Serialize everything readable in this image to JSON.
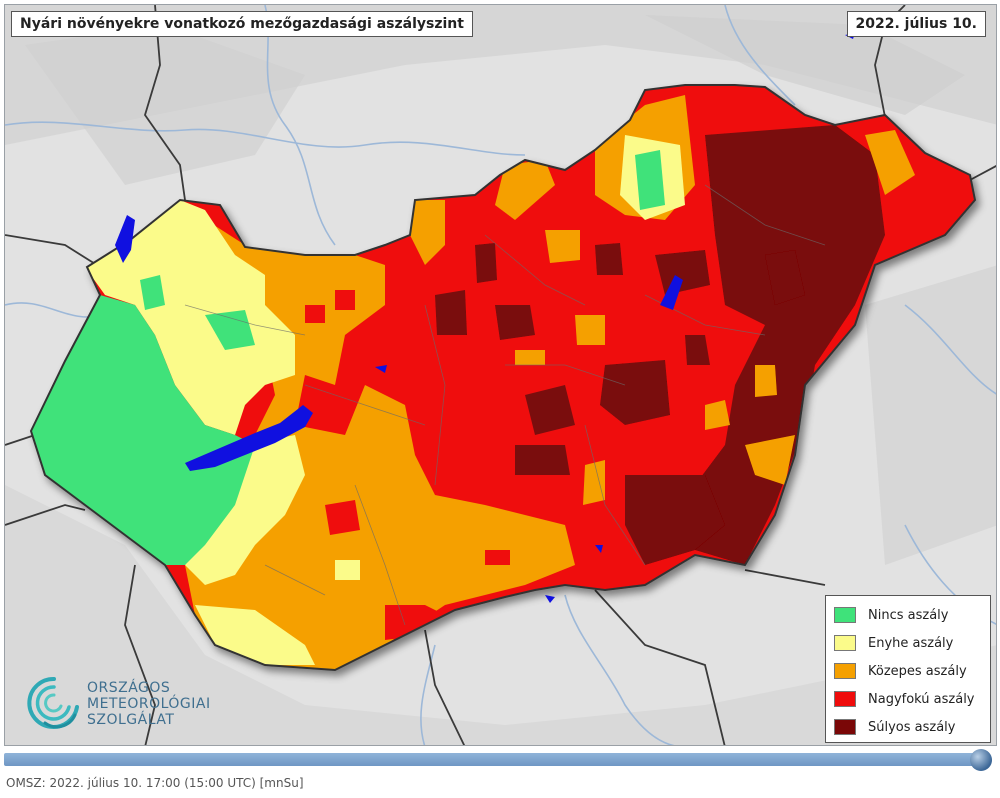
{
  "title": "Nyári növényekre vonatkozó mezőgazdasági aszályszint",
  "date": "2022. július 10.",
  "legend": {
    "items": [
      {
        "label": "Nincs aszály",
        "color": "#3fe27a"
      },
      {
        "label": "Enyhe aszály",
        "color": "#fbfb8a"
      },
      {
        "label": "Közepes aszály",
        "color": "#f5a000"
      },
      {
        "label": "Nagyfokú aszály",
        "color": "#ef0c0c"
      },
      {
        "label": "Súlyos aszály",
        "color": "#7a0707"
      }
    ]
  },
  "logo": {
    "line1": "ORSZÁGOS",
    "line2": "METEOROLÓGIAI",
    "line3": "SZOLGÁLAT"
  },
  "footer": {
    "source": "OMSZ: 2022. július 10. 17:00 (15:00  UTC)",
    "code": "[mnSu]"
  },
  "timeline": {
    "position": 1.0
  },
  "colors": {
    "lake": "#1010e0",
    "border": "#333333",
    "background": "#e3e3e3"
  }
}
